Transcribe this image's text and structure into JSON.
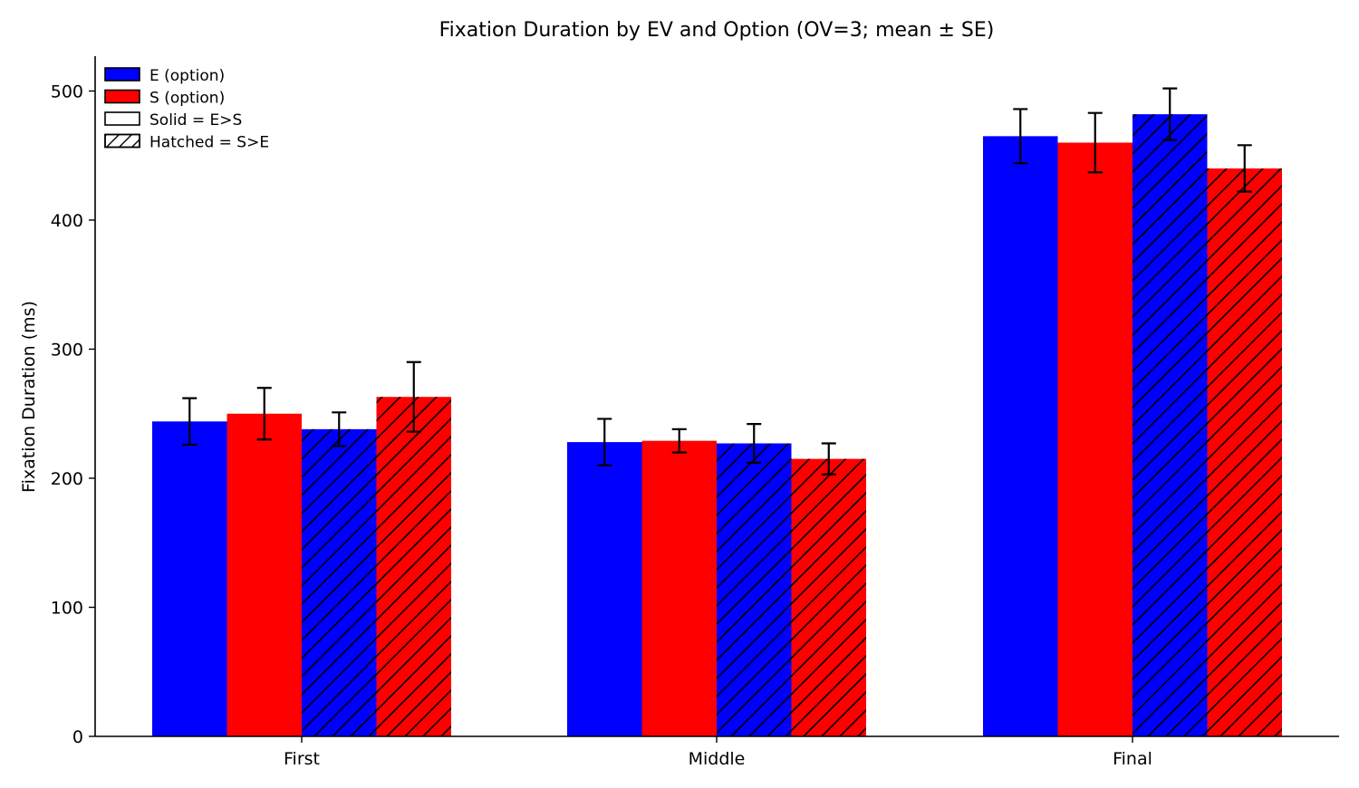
{
  "chart_data": {
    "type": "bar",
    "title": "Fixation Duration by EV and Option (OV=3; mean ± SE)",
    "xlabel": "",
    "ylabel": "Fixation Duration (ms)",
    "ylim": [
      0,
      527
    ],
    "yticks": [
      0,
      100,
      200,
      300,
      400,
      500
    ],
    "categories": [
      "First",
      "Middle",
      "Final"
    ],
    "series": [
      {
        "option": "E",
        "condition": "E>S",
        "color": "#0000ff",
        "hatch": false,
        "values": [
          244,
          228,
          465
        ],
        "errors": [
          18,
          18,
          21
        ]
      },
      {
        "option": "S",
        "condition": "E>S",
        "color": "#ff0000",
        "hatch": false,
        "values": [
          250,
          229,
          460
        ],
        "errors": [
          20,
          9,
          23
        ]
      },
      {
        "option": "E",
        "condition": "S>E",
        "color": "#0000ff",
        "hatch": true,
        "values": [
          238,
          227,
          482
        ],
        "errors": [
          13,
          15,
          20
        ]
      },
      {
        "option": "S",
        "condition": "S>E",
        "color": "#ff0000",
        "hatch": true,
        "values": [
          263,
          215,
          440
        ],
        "errors": [
          27,
          12,
          18
        ]
      }
    ],
    "legend": {
      "position": "top-left",
      "entries": [
        {
          "label": "E (option)",
          "color": "#0000ff",
          "hatch": false
        },
        {
          "label": "S (option)",
          "color": "#ff0000",
          "hatch": false
        },
        {
          "label": "Solid = E>S",
          "color": "#ffffff",
          "hatch": false
        },
        {
          "label": "Hatched = S>E",
          "color": "#ffffff",
          "hatch": true
        }
      ]
    },
    "grid": false
  }
}
